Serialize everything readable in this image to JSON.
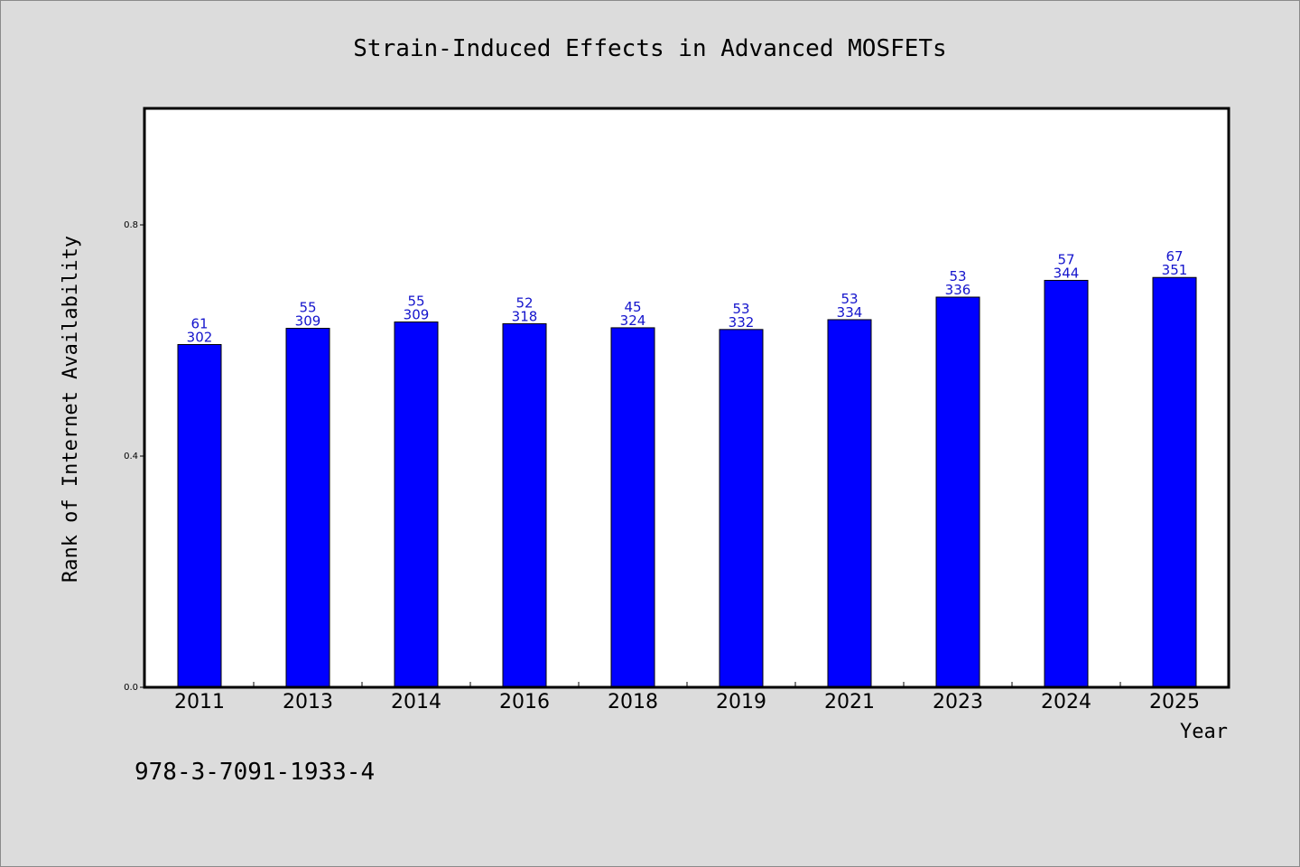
{
  "chart_data": {
    "type": "bar",
    "title": "Strain-Induced Effects in Advanced MOSFETs",
    "xlabel": "Year",
    "ylabel": "Rank of Internet Availability",
    "categories": [
      "2011",
      "2013",
      "2014",
      "2016",
      "2018",
      "2019",
      "2021",
      "2023",
      "2024",
      "2025"
    ],
    "values": [
      0.593,
      0.621,
      0.632,
      0.629,
      0.622,
      0.619,
      0.636,
      0.675,
      0.704,
      0.709
    ],
    "bar_labels_top": [
      "61",
      "55",
      "55",
      "52",
      "45",
      "53",
      "53",
      "53",
      "57",
      "67"
    ],
    "bar_labels_bottom": [
      "302",
      "309",
      "309",
      "318",
      "324",
      "332",
      "334",
      "336",
      "344",
      "351"
    ],
    "ylim": [
      0.0,
      1.0
    ],
    "yticks": [
      0.0,
      0.4,
      0.8
    ],
    "ytick_labels": [
      "0.0",
      "0.4",
      "0.8"
    ],
    "grid": false,
    "colors": {
      "bar_fill": "#0000ff",
      "bar_edge": "#000000",
      "bar_label": "#1414cc",
      "plot_background": "#ffffff",
      "figure_background": "#dcdcdc"
    }
  },
  "footnote": "978-3-7091-1933-4"
}
